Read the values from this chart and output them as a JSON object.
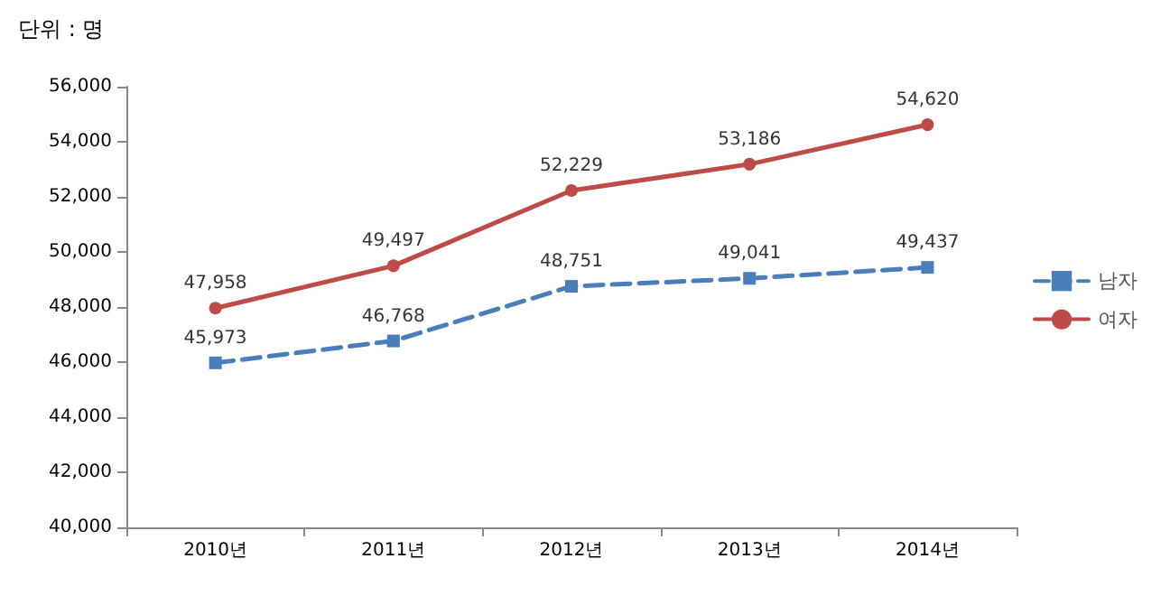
{
  "chart_data": {
    "type": "line",
    "annotations": [
      "단위 : 명"
    ],
    "categories": [
      "2010년",
      "2011년",
      "2012년",
      "2013년",
      "2014년"
    ],
    "series": [
      {
        "name": "남자",
        "color": "#4a7ebb",
        "values": [
          45973,
          46768,
          48751,
          49041,
          49437
        ],
        "value_labels": [
          "45,973",
          "46,768",
          "48,751",
          "49,041",
          "49,437"
        ],
        "marker": "square",
        "line_style": "dashed"
      },
      {
        "name": "여자",
        "color": "#be4b48",
        "values": [
          47958,
          49497,
          52229,
          53186,
          54620
        ],
        "value_labels": [
          "47,958",
          "49,497",
          "52,229",
          "53,186",
          "54,620"
        ],
        "marker": "circle",
        "line_style": "solid"
      }
    ],
    "ylim": [
      40000,
      56000
    ],
    "yticks": [
      {
        "value": 40000,
        "label": "40,000"
      },
      {
        "value": 42000,
        "label": "42,000"
      },
      {
        "value": 44000,
        "label": "44,000"
      },
      {
        "value": 46000,
        "label": "46,000"
      },
      {
        "value": 48000,
        "label": "48,000"
      },
      {
        "value": 50000,
        "label": "50,000"
      },
      {
        "value": 52000,
        "label": "52,000"
      },
      {
        "value": 54000,
        "label": "54,000"
      },
      {
        "value": 56000,
        "label": "56,000"
      }
    ],
    "grid": false,
    "legend": "right"
  }
}
